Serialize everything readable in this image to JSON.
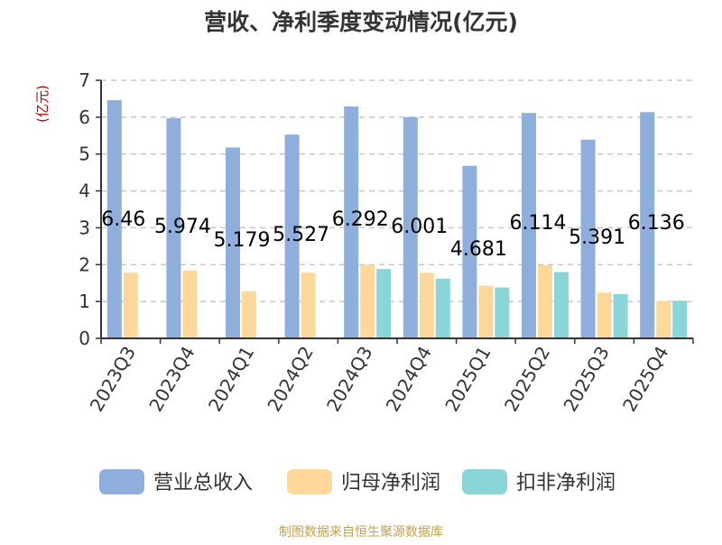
{
  "chart_data": {
    "type": "bar",
    "title": "营收、净利季度变动情况(亿元)",
    "ylabel": "(亿元)",
    "xlabel": "",
    "ylim": [
      0,
      7
    ],
    "yticks": [
      0,
      1,
      2,
      3,
      4,
      5,
      6,
      7
    ],
    "grid": true,
    "legend_position": "bottom",
    "categories": [
      "2023Q3",
      "2023Q4",
      "2024Q1",
      "2024Q2",
      "2024Q3",
      "2024Q4",
      "2025Q1",
      "2025Q2",
      "2025Q3",
      "2025Q4"
    ],
    "series": [
      {
        "name": "营业总收入",
        "color": "#8eaedc",
        "values": [
          6.46,
          5.974,
          5.179,
          5.527,
          6.292,
          6.001,
          4.681,
          6.114,
          5.391,
          6.136
        ]
      },
      {
        "name": "归母净利润",
        "color": "#fdd89a",
        "values": [
          1.78,
          1.84,
          1.28,
          1.78,
          2.0,
          1.78,
          1.43,
          1.98,
          1.24,
          1.01
        ]
      },
      {
        "name": "扣非净利润",
        "color": "#89d5d8",
        "values": [
          null,
          null,
          null,
          null,
          1.88,
          1.62,
          1.38,
          1.8,
          1.2,
          1.02
        ]
      }
    ],
    "data_labels": [
      "6.46",
      "5.974",
      "5.179",
      "5.527",
      "6.292",
      "6.001",
      "4.681",
      "6.114",
      "5.391",
      "6.136"
    ]
  },
  "colors": {
    "title": "#333333",
    "axis": "#333333",
    "grid": "#c8c8c8",
    "ylabel": "#cc0000",
    "source": "#c8a048"
  },
  "source_text": "制图数据来自恒生聚源数据库"
}
